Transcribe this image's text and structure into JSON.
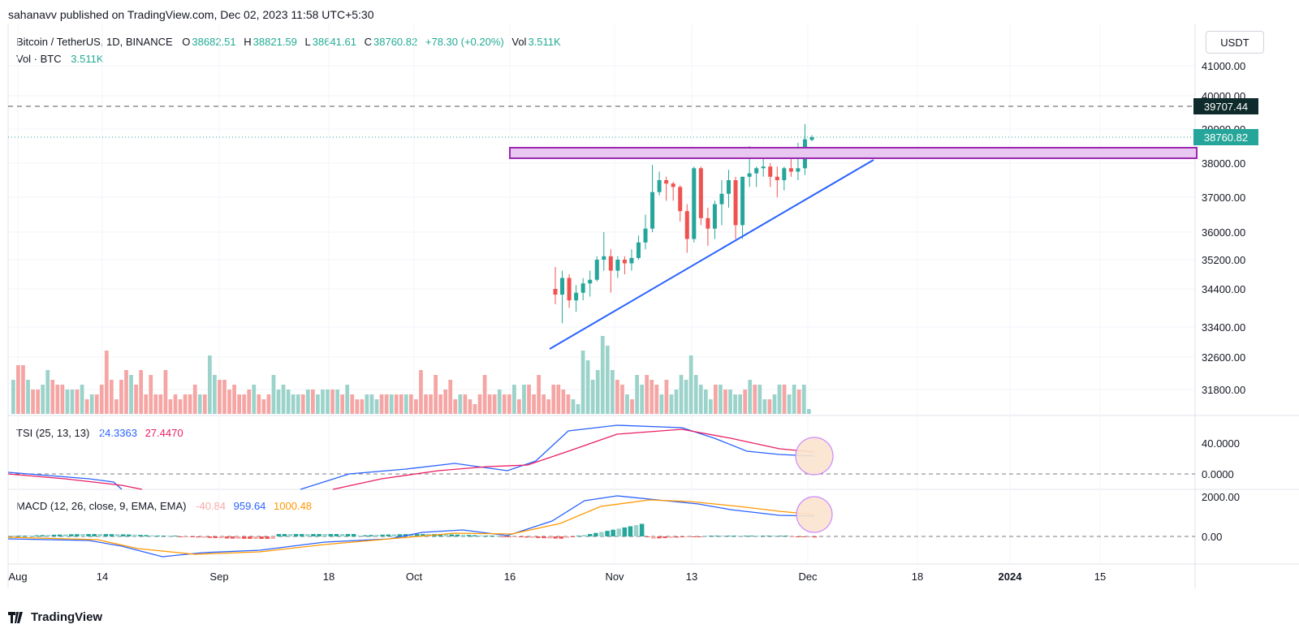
{
  "header": {
    "publish_line": "sahanavv published on TradingView.com, Dec 02, 2023 11:58 UTC+5:30"
  },
  "legend": {
    "symbol": "Bitcoin / TetherUS, 1D, BINANCE",
    "o_label": "O",
    "o": "38682.51",
    "h_label": "H",
    "h": "38821.59",
    "l_label": "L",
    "l": "38641.61",
    "c_label": "C",
    "c": "38760.82",
    "change": "+78.30 (+0.20%)",
    "vol_label": "Vol",
    "vol": "3.511K",
    "vol_line_label": "Vol · BTC",
    "vol_line_value": "3.511K"
  },
  "price_unit": "USDT",
  "colors": {
    "up": "#26a69a",
    "down": "#ef5350",
    "vol_up": "#9bd3cb",
    "vol_down": "#f5a6a4",
    "trendline": "#2962ff",
    "zone_fill": "#e8c8f0",
    "zone_border": "#9c27b0",
    "tsi": "#2962ff",
    "tsi_signal": "#e91e63",
    "macd": "#2962ff",
    "macd_signal": "#ff9800",
    "highlight": "#fbe4d0"
  },
  "chart_data": [
    {
      "type": "candlestick",
      "y_ticks": [
        "41000.00",
        "40000.00",
        "39000.00",
        "38000.00",
        "37000.00",
        "36000.00",
        "35200.00",
        "34400.00",
        "33400.00",
        "32600.00",
        "31800.00"
      ],
      "price_tags": [
        {
          "label": "39707.44",
          "kind": "dark"
        },
        {
          "label": "38760.82",
          "kind": "green"
        }
      ],
      "x_ticks": [
        "Aug",
        "14",
        "Sep",
        "18",
        "Oct",
        "16",
        "Nov",
        "13",
        "Dec",
        "18",
        "2024",
        "15"
      ],
      "candles": [
        [
          34400,
          35000,
          34000,
          34250
        ],
        [
          34250,
          34900,
          33500,
          34700
        ],
        [
          34700,
          34800,
          33900,
          34100
        ],
        [
          34100,
          34500,
          33800,
          34300
        ],
        [
          34300,
          34700,
          34100,
          34550
        ],
        [
          34550,
          34900,
          34200,
          34650
        ],
        [
          34650,
          35300,
          34600,
          35200
        ],
        [
          35200,
          36000,
          34900,
          35300
        ],
        [
          35300,
          35500,
          34300,
          34900
        ],
        [
          34900,
          35300,
          34700,
          35200
        ],
        [
          35200,
          35300,
          34800,
          35100
        ],
        [
          35100,
          35500,
          34900,
          35250
        ],
        [
          35250,
          35900,
          35200,
          35700
        ],
        [
          35700,
          36500,
          35500,
          36100
        ],
        [
          36100,
          37950,
          36000,
          37150
        ],
        [
          37150,
          37750,
          37050,
          37500
        ],
        [
          37500,
          37600,
          36900,
          37400
        ],
        [
          37400,
          37450,
          36900,
          37300
        ],
        [
          37300,
          37350,
          36300,
          36600
        ],
        [
          36600,
          36800,
          35400,
          35800
        ],
        [
          35800,
          37900,
          35700,
          37850
        ],
        [
          37850,
          37900,
          36200,
          36400
        ],
        [
          36400,
          36700,
          35600,
          36100
        ],
        [
          36100,
          36900,
          35800,
          36800
        ],
        [
          36800,
          37500,
          36200,
          37100
        ],
        [
          37100,
          37800,
          36700,
          37500
        ],
        [
          37500,
          37600,
          35800,
          36200
        ],
        [
          36200,
          37600,
          35800,
          37600
        ],
        [
          37600,
          38500,
          37300,
          37700
        ],
        [
          37700,
          37900,
          37300,
          37850
        ],
        [
          37850,
          38300,
          37600,
          37900
        ],
        [
          37900,
          38000,
          37300,
          37600
        ],
        [
          37600,
          37900,
          37000,
          37500
        ],
        [
          37500,
          37900,
          37200,
          37850
        ],
        [
          37850,
          38300,
          37600,
          37750
        ],
        [
          37750,
          38600,
          37500,
          37850
        ],
        [
          37850,
          39150,
          37650,
          38700
        ],
        [
          38682,
          38821,
          38641,
          38760
        ]
      ],
      "volume": [
        [
          7,
          true
        ],
        [
          10,
          false
        ],
        [
          10,
          false
        ],
        [
          7,
          true
        ],
        [
          5,
          false
        ],
        [
          5,
          false
        ],
        [
          6,
          true
        ],
        [
          9,
          true
        ],
        [
          7,
          false
        ],
        [
          6,
          false
        ],
        [
          6,
          false
        ],
        [
          5,
          true
        ],
        [
          5,
          true
        ],
        [
          5,
          false
        ],
        [
          6,
          true
        ],
        [
          3,
          false
        ],
        [
          4,
          true
        ],
        [
          4,
          false
        ],
        [
          6,
          false
        ],
        [
          13,
          false
        ],
        [
          7,
          false
        ],
        [
          3,
          false
        ],
        [
          7,
          false
        ],
        [
          9,
          false
        ],
        [
          8,
          true
        ],
        [
          6,
          false
        ],
        [
          9,
          false
        ],
        [
          4,
          false
        ],
        [
          8,
          false
        ],
        [
          4,
          false
        ],
        [
          4,
          false
        ],
        [
          9,
          false
        ],
        [
          3,
          false
        ],
        [
          4,
          false
        ],
        [
          3,
          false
        ],
        [
          4,
          false
        ],
        [
          4,
          false
        ],
        [
          6,
          false
        ],
        [
          4,
          true
        ],
        [
          4,
          false
        ],
        [
          12,
          true
        ],
        [
          8,
          true
        ],
        [
          7,
          false
        ],
        [
          7,
          false
        ],
        [
          5,
          false
        ],
        [
          6,
          false
        ],
        [
          4,
          false
        ],
        [
          4,
          false
        ],
        [
          5,
          false
        ],
        [
          6,
          true
        ],
        [
          4,
          false
        ],
        [
          3,
          false
        ],
        [
          4,
          false
        ],
        [
          8,
          true
        ],
        [
          5,
          true
        ],
        [
          6,
          true
        ],
        [
          5,
          true
        ],
        [
          4,
          true
        ],
        [
          4,
          true
        ],
        [
          4,
          false
        ],
        [
          5,
          true
        ],
        [
          5,
          false
        ],
        [
          4,
          true
        ],
        [
          5,
          true
        ],
        [
          5,
          true
        ],
        [
          5,
          false
        ],
        [
          5,
          true
        ],
        [
          4,
          false
        ],
        [
          6,
          true
        ],
        [
          4,
          false
        ],
        [
          3,
          false
        ],
        [
          3,
          false
        ],
        [
          4,
          true
        ],
        [
          4,
          true
        ],
        [
          3,
          true
        ],
        [
          4,
          false
        ],
        [
          4,
          false
        ],
        [
          4,
          true
        ],
        [
          4,
          false
        ],
        [
          4,
          false
        ],
        [
          4,
          true
        ],
        [
          4,
          false
        ],
        [
          3,
          false
        ],
        [
          9,
          false
        ],
        [
          4,
          false
        ],
        [
          4,
          false
        ],
        [
          8,
          false
        ],
        [
          4,
          false
        ],
        [
          5,
          false
        ],
        [
          7,
          false
        ],
        [
          3,
          false
        ],
        [
          4,
          true
        ],
        [
          4,
          false
        ],
        [
          3,
          false
        ],
        [
          2,
          false
        ],
        [
          4,
          false
        ],
        [
          8,
          false
        ],
        [
          4,
          false
        ],
        [
          4,
          false
        ],
        [
          5,
          true
        ],
        [
          4,
          false
        ],
        [
          4,
          false
        ],
        [
          6,
          true
        ],
        [
          3,
          false
        ],
        [
          6,
          true
        ],
        [
          6,
          false
        ],
        [
          4,
          false
        ],
        [
          8,
          false
        ],
        [
          4,
          false
        ],
        [
          3,
          false
        ],
        [
          6,
          false
        ],
        [
          6,
          false
        ],
        [
          5,
          false
        ],
        [
          4,
          false
        ],
        [
          3,
          true
        ],
        [
          2,
          true
        ],
        [
          13,
          true
        ],
        [
          11,
          true
        ],
        [
          7,
          true
        ],
        [
          9,
          true
        ],
        [
          16,
          true
        ],
        [
          14,
          true
        ],
        [
          9,
          true
        ],
        [
          7,
          false
        ],
        [
          6,
          false
        ],
        [
          4,
          true
        ],
        [
          3,
          false
        ],
        [
          8,
          true
        ],
        [
          6,
          true
        ],
        [
          8,
          false
        ],
        [
          7,
          false
        ],
        [
          6,
          false
        ],
        [
          4,
          true
        ],
        [
          7,
          false
        ],
        [
          4,
          true
        ],
        [
          5,
          true
        ],
        [
          8,
          true
        ],
        [
          7,
          true
        ],
        [
          12,
          true
        ],
        [
          8,
          true
        ],
        [
          6,
          true
        ],
        [
          5,
          true
        ],
        [
          3,
          true
        ],
        [
          6,
          false
        ],
        [
          6,
          true
        ],
        [
          5,
          false
        ],
        [
          5,
          true
        ],
        [
          4,
          true
        ],
        [
          4,
          true
        ],
        [
          5,
          false
        ],
        [
          7,
          true
        ],
        [
          6,
          false
        ],
        [
          6,
          true
        ],
        [
          3,
          true
        ],
        [
          3,
          false
        ],
        [
          4,
          true
        ],
        [
          6,
          true
        ],
        [
          6,
          false
        ],
        [
          4,
          true
        ],
        [
          6,
          true
        ],
        [
          5,
          false
        ],
        [
          6,
          true
        ],
        [
          1,
          true
        ]
      ]
    },
    {
      "type": "line",
      "label": "TSI (25, 13, 13)",
      "values": [
        "24.3363",
        "27.4470"
      ],
      "y_ticks": [
        "40.0000",
        "0.0000"
      ]
    },
    {
      "type": "line",
      "label": "MACD (12, 26, close, 9, EMA, EMA)",
      "values": [
        "-40.84",
        "959.64",
        "1000.48"
      ],
      "y_ticks": [
        "2000.00",
        "0.00"
      ]
    }
  ],
  "footer": {
    "brand": "TradingView"
  }
}
